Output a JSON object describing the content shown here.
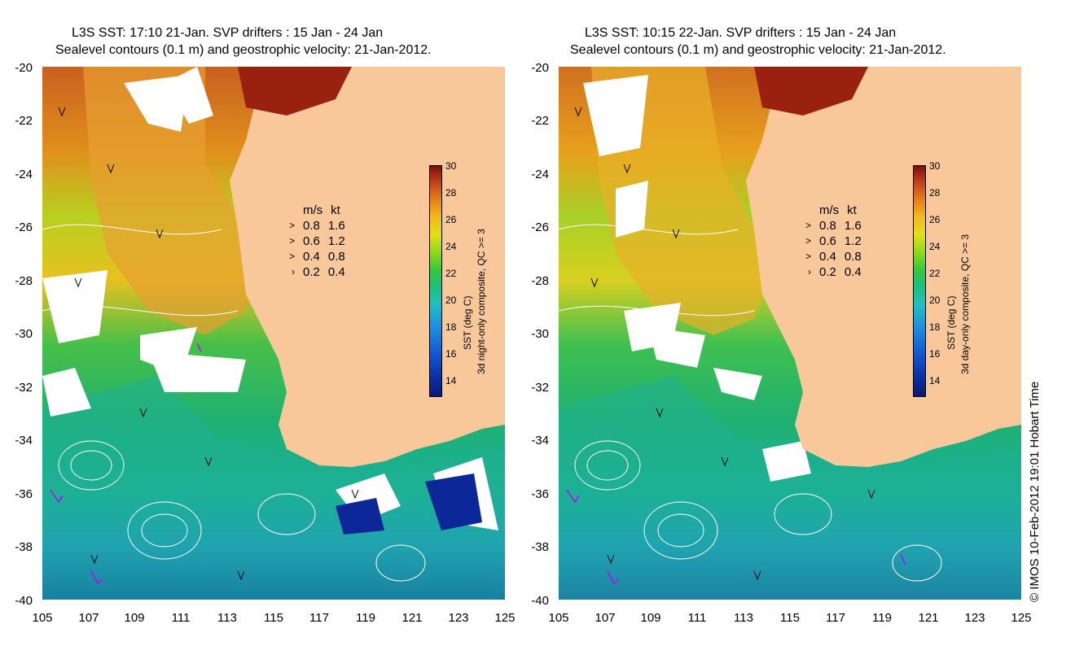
{
  "left_panel": {
    "title_line1": "L3S SST: 17:10 21-Jan. SVP drifters : 15 Jan - 24 Jan",
    "title_line2": "Sealevel contours (0.1 m) and geostrophic velocity: 21-Jan-2012.",
    "colorbar_label": "SST (deg C)",
    "colorbar_sublabel": "3d night-only composite, QC >= 3"
  },
  "right_panel": {
    "title_line1": "L3S SST: 10:15 22-Jan. SVP drifters : 15 Jan - 24 Jan",
    "title_line2": "Sealevel contours (0.1 m) and geostrophic velocity: 21-Jan-2012.",
    "colorbar_label": "SST (deg C)",
    "colorbar_sublabel": "3d day-only composite, QC >= 3"
  },
  "legend": {
    "header_ms": "m/s",
    "header_kt": "kt",
    "rows": [
      {
        "ms": "0.8",
        "kt": "1.6"
      },
      {
        "ms": "0.6",
        "kt": "1.2"
      },
      {
        "ms": "0.4",
        "kt": "0.8"
      },
      {
        "ms": "0.2",
        "kt": "0.4"
      }
    ]
  },
  "axes": {
    "y_ticks": [
      "-20",
      "-22",
      "-24",
      "-26",
      "-28",
      "-30",
      "-32",
      "-34",
      "-36",
      "-38",
      "-40"
    ],
    "x_ticks": [
      "105",
      "107",
      "109",
      "111",
      "113",
      "115",
      "117",
      "119",
      "121",
      "123",
      "125"
    ],
    "lon_range": [
      105,
      125
    ],
    "lat_range": [
      -40,
      -20
    ]
  },
  "colorbar": {
    "ticks": [
      "30",
      "28",
      "26",
      "24",
      "22",
      "20",
      "18",
      "16",
      "14"
    ],
    "range": [
      13,
      30
    ]
  },
  "credit": "© IMOS 10-Feb-2012 19:01 Hobart Time",
  "colors": {
    "land": "#f8c89a",
    "cloud": "#ffffff",
    "contour": "#ffffff",
    "arrow": "#000000"
  }
}
